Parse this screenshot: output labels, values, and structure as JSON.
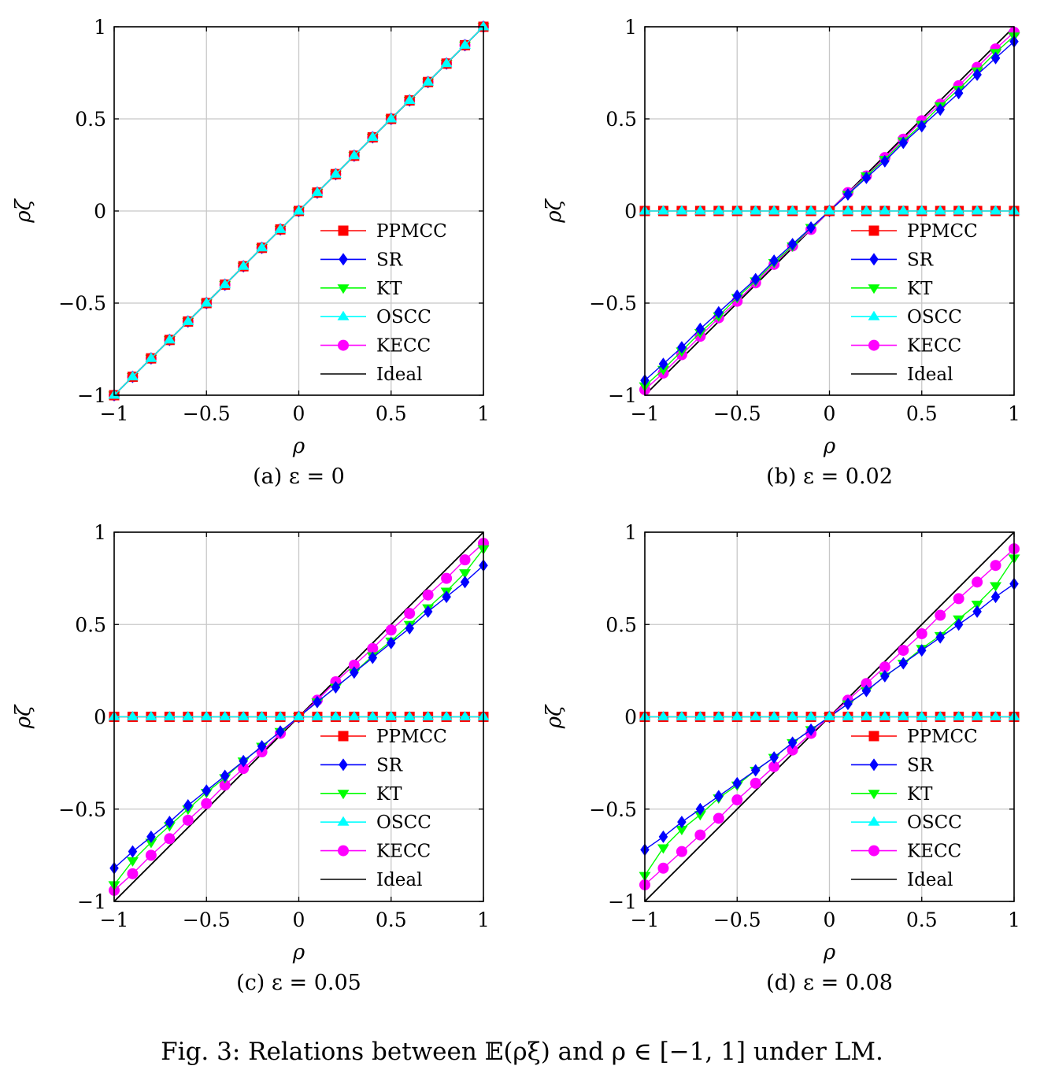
{
  "figure_caption": "Fig. 3: Relations between 𝔼(ρξ) and ρ ∈ [−1, 1] under LM.",
  "axis_tick_labels": [
    "−1",
    "−0.5",
    "0",
    "0.5",
    "1"
  ],
  "series_styles": [
    {
      "name": "PPMCC",
      "color": "#ff0000",
      "marker": "square"
    },
    {
      "name": "SR",
      "color": "#0000ff",
      "marker": "diamond"
    },
    {
      "name": "KT",
      "color": "#00ff00",
      "marker": "triangle-down"
    },
    {
      "name": "OSCC",
      "color": "#00ffff",
      "marker": "triangle-up"
    },
    {
      "name": "KECC",
      "color": "#ff00ff",
      "marker": "circle"
    },
    {
      "name": "Ideal",
      "color": "#000000",
      "marker": "none"
    }
  ],
  "chart_data": [
    {
      "type": "line",
      "caption": "(a) ε = 0",
      "xlabel": "ρ",
      "ylabel": "ρζ",
      "xlim": [
        -1,
        1
      ],
      "ylim": [
        -1,
        1
      ],
      "grid": true,
      "legend_position": "bottom-right",
      "x": [
        -1.0,
        -0.9,
        -0.8,
        -0.7,
        -0.6,
        -0.5,
        -0.4,
        -0.3,
        -0.2,
        -0.1,
        0.0,
        0.1,
        0.2,
        0.3,
        0.4,
        0.5,
        0.6,
        0.7,
        0.8,
        0.9,
        1.0
      ],
      "series": [
        {
          "name": "PPMCC",
          "values": [
            -1.0,
            -0.9,
            -0.8,
            -0.7,
            -0.6,
            -0.5,
            -0.4,
            -0.3,
            -0.2,
            -0.1,
            0.0,
            0.1,
            0.2,
            0.3,
            0.4,
            0.5,
            0.6,
            0.7,
            0.8,
            0.9,
            1.0
          ]
        },
        {
          "name": "SR",
          "values": [
            -1.0,
            -0.9,
            -0.8,
            -0.7,
            -0.6,
            -0.5,
            -0.4,
            -0.3,
            -0.2,
            -0.1,
            0.0,
            0.1,
            0.2,
            0.3,
            0.4,
            0.5,
            0.6,
            0.7,
            0.8,
            0.9,
            1.0
          ]
        },
        {
          "name": "KT",
          "values": [
            -1.0,
            -0.9,
            -0.8,
            -0.7,
            -0.6,
            -0.5,
            -0.4,
            -0.3,
            -0.2,
            -0.1,
            0.0,
            0.1,
            0.2,
            0.3,
            0.4,
            0.5,
            0.6,
            0.7,
            0.8,
            0.9,
            1.0
          ]
        },
        {
          "name": "OSCC",
          "values": [
            -1.0,
            -0.9,
            -0.8,
            -0.7,
            -0.6,
            -0.5,
            -0.4,
            -0.3,
            -0.2,
            -0.1,
            0.0,
            0.1,
            0.2,
            0.3,
            0.4,
            0.5,
            0.6,
            0.7,
            0.8,
            0.9,
            1.0
          ]
        },
        {
          "name": "KECC",
          "values": [
            -1.0,
            -0.9,
            -0.8,
            -0.7,
            -0.6,
            -0.5,
            -0.4,
            -0.3,
            -0.2,
            -0.1,
            0.0,
            0.1,
            0.2,
            0.3,
            0.4,
            0.5,
            0.6,
            0.7,
            0.8,
            0.9,
            1.0
          ]
        },
        {
          "name": "Ideal",
          "values": [
            -1.0,
            -0.9,
            -0.8,
            -0.7,
            -0.6,
            -0.5,
            -0.4,
            -0.3,
            -0.2,
            -0.1,
            0.0,
            0.1,
            0.2,
            0.3,
            0.4,
            0.5,
            0.6,
            0.7,
            0.8,
            0.9,
            1.0
          ]
        }
      ]
    },
    {
      "type": "line",
      "caption": "(b) ε = 0.02",
      "xlabel": "ρ",
      "ylabel": "ρζ",
      "xlim": [
        -1,
        1
      ],
      "ylim": [
        -1,
        1
      ],
      "grid": true,
      "legend_position": "bottom-right",
      "x": [
        -1.0,
        -0.9,
        -0.8,
        -0.7,
        -0.6,
        -0.5,
        -0.4,
        -0.3,
        -0.2,
        -0.1,
        0.0,
        0.1,
        0.2,
        0.3,
        0.4,
        0.5,
        0.6,
        0.7,
        0.8,
        0.9,
        1.0
      ],
      "series": [
        {
          "name": "PPMCC",
          "values": [
            0,
            0,
            0,
            0,
            0,
            0,
            0,
            0,
            0,
            0,
            0,
            0,
            0,
            0,
            0,
            0,
            0,
            0,
            0,
            0,
            0
          ]
        },
        {
          "name": "SR",
          "values": [
            -0.92,
            -0.83,
            -0.74,
            -0.64,
            -0.55,
            -0.46,
            -0.37,
            -0.27,
            -0.18,
            -0.09,
            0.0,
            0.09,
            0.18,
            0.27,
            0.37,
            0.46,
            0.55,
            0.64,
            0.74,
            0.83,
            0.92
          ]
        },
        {
          "name": "KT",
          "values": [
            -0.95,
            -0.86,
            -0.76,
            -0.66,
            -0.57,
            -0.47,
            -0.38,
            -0.28,
            -0.19,
            -0.09,
            0.0,
            0.09,
            0.19,
            0.28,
            0.38,
            0.47,
            0.57,
            0.66,
            0.76,
            0.86,
            0.95
          ]
        },
        {
          "name": "OSCC",
          "values": [
            0,
            0,
            0,
            0,
            0,
            0,
            0,
            0,
            0,
            0,
            0,
            0,
            0,
            0,
            0,
            0,
            0,
            0,
            0,
            0,
            0
          ]
        },
        {
          "name": "KECC",
          "values": [
            -0.97,
            -0.88,
            -0.78,
            -0.68,
            -0.58,
            -0.49,
            -0.39,
            -0.29,
            -0.19,
            -0.1,
            0.0,
            0.1,
            0.19,
            0.29,
            0.39,
            0.49,
            0.58,
            0.68,
            0.78,
            0.88,
            0.97
          ]
        },
        {
          "name": "Ideal",
          "values": [
            -1.0,
            -0.9,
            -0.8,
            -0.7,
            -0.6,
            -0.5,
            -0.4,
            -0.3,
            -0.2,
            -0.1,
            0.0,
            0.1,
            0.2,
            0.3,
            0.4,
            0.5,
            0.6,
            0.7,
            0.8,
            0.9,
            1.0
          ]
        }
      ]
    },
    {
      "type": "line",
      "caption": "(c) ε = 0.05",
      "xlabel": "ρ",
      "ylabel": "ρζ",
      "xlim": [
        -1,
        1
      ],
      "ylim": [
        -1,
        1
      ],
      "grid": true,
      "legend_position": "bottom-right",
      "x": [
        -1.0,
        -0.9,
        -0.8,
        -0.7,
        -0.6,
        -0.5,
        -0.4,
        -0.3,
        -0.2,
        -0.1,
        0.0,
        0.1,
        0.2,
        0.3,
        0.4,
        0.5,
        0.6,
        0.7,
        0.8,
        0.9,
        1.0
      ],
      "series": [
        {
          "name": "PPMCC",
          "values": [
            0,
            0,
            0,
            0,
            0,
            0,
            0,
            0,
            0,
            0,
            0,
            0,
            0,
            0,
            0,
            0,
            0,
            0,
            0,
            0,
            0
          ]
        },
        {
          "name": "SR",
          "values": [
            -0.82,
            -0.73,
            -0.65,
            -0.57,
            -0.48,
            -0.4,
            -0.32,
            -0.24,
            -0.16,
            -0.08,
            0.0,
            0.08,
            0.16,
            0.24,
            0.32,
            0.4,
            0.48,
            0.57,
            0.65,
            0.73,
            0.82
          ]
        },
        {
          "name": "KT",
          "values": [
            -0.91,
            -0.78,
            -0.68,
            -0.59,
            -0.5,
            -0.41,
            -0.33,
            -0.24,
            -0.16,
            -0.08,
            0.0,
            0.08,
            0.16,
            0.24,
            0.33,
            0.41,
            0.5,
            0.59,
            0.68,
            0.78,
            0.91
          ]
        },
        {
          "name": "OSCC",
          "values": [
            0,
            0,
            0,
            0,
            0,
            0,
            0,
            0,
            0,
            0,
            0,
            0,
            0,
            0,
            0,
            0,
            0,
            0,
            0,
            0,
            0
          ]
        },
        {
          "name": "KECC",
          "values": [
            -0.94,
            -0.85,
            -0.75,
            -0.66,
            -0.56,
            -0.47,
            -0.37,
            -0.28,
            -0.19,
            -0.09,
            0.0,
            0.09,
            0.19,
            0.28,
            0.37,
            0.47,
            0.56,
            0.66,
            0.75,
            0.85,
            0.94
          ]
        },
        {
          "name": "Ideal",
          "values": [
            -1.0,
            -0.9,
            -0.8,
            -0.7,
            -0.6,
            -0.5,
            -0.4,
            -0.3,
            -0.2,
            -0.1,
            0.0,
            0.1,
            0.2,
            0.3,
            0.4,
            0.5,
            0.6,
            0.7,
            0.8,
            0.9,
            1.0
          ]
        }
      ]
    },
    {
      "type": "line",
      "caption": "(d) ε = 0.08",
      "xlabel": "ρ",
      "ylabel": "ρζ",
      "xlim": [
        -1,
        1
      ],
      "ylim": [
        -1,
        1
      ],
      "grid": true,
      "legend_position": "bottom-right",
      "x": [
        -1.0,
        -0.9,
        -0.8,
        -0.7,
        -0.6,
        -0.5,
        -0.4,
        -0.3,
        -0.2,
        -0.1,
        0.0,
        0.1,
        0.2,
        0.3,
        0.4,
        0.5,
        0.6,
        0.7,
        0.8,
        0.9,
        1.0
      ],
      "series": [
        {
          "name": "PPMCC",
          "values": [
            0,
            0,
            0,
            0,
            0,
            0,
            0,
            0,
            0,
            0,
            0,
            0,
            0,
            0,
            0,
            0,
            0,
            0,
            0,
            0,
            0
          ]
        },
        {
          "name": "SR",
          "values": [
            -0.72,
            -0.65,
            -0.57,
            -0.5,
            -0.43,
            -0.36,
            -0.29,
            -0.22,
            -0.14,
            -0.07,
            0.0,
            0.07,
            0.14,
            0.22,
            0.29,
            0.36,
            0.43,
            0.5,
            0.57,
            0.65,
            0.72
          ]
        },
        {
          "name": "KT",
          "values": [
            -0.86,
            -0.71,
            -0.61,
            -0.53,
            -0.44,
            -0.37,
            -0.29,
            -0.22,
            -0.14,
            -0.07,
            0.0,
            0.07,
            0.14,
            0.22,
            0.29,
            0.37,
            0.44,
            0.53,
            0.61,
            0.71,
            0.86
          ]
        },
        {
          "name": "OSCC",
          "values": [
            0,
            0,
            0,
            0,
            0,
            0,
            0,
            0,
            0,
            0,
            0,
            0,
            0,
            0,
            0,
            0,
            0,
            0,
            0,
            0,
            0
          ]
        },
        {
          "name": "KECC",
          "values": [
            -0.91,
            -0.82,
            -0.73,
            -0.64,
            -0.55,
            -0.45,
            -0.36,
            -0.27,
            -0.18,
            -0.09,
            0.0,
            0.09,
            0.18,
            0.27,
            0.36,
            0.45,
            0.55,
            0.64,
            0.73,
            0.82,
            0.91
          ]
        },
        {
          "name": "Ideal",
          "values": [
            -1.0,
            -0.9,
            -0.8,
            -0.7,
            -0.6,
            -0.5,
            -0.4,
            -0.3,
            -0.2,
            -0.1,
            0.0,
            0.1,
            0.2,
            0.3,
            0.4,
            0.5,
            0.6,
            0.7,
            0.8,
            0.9,
            1.0
          ]
        }
      ]
    }
  ]
}
